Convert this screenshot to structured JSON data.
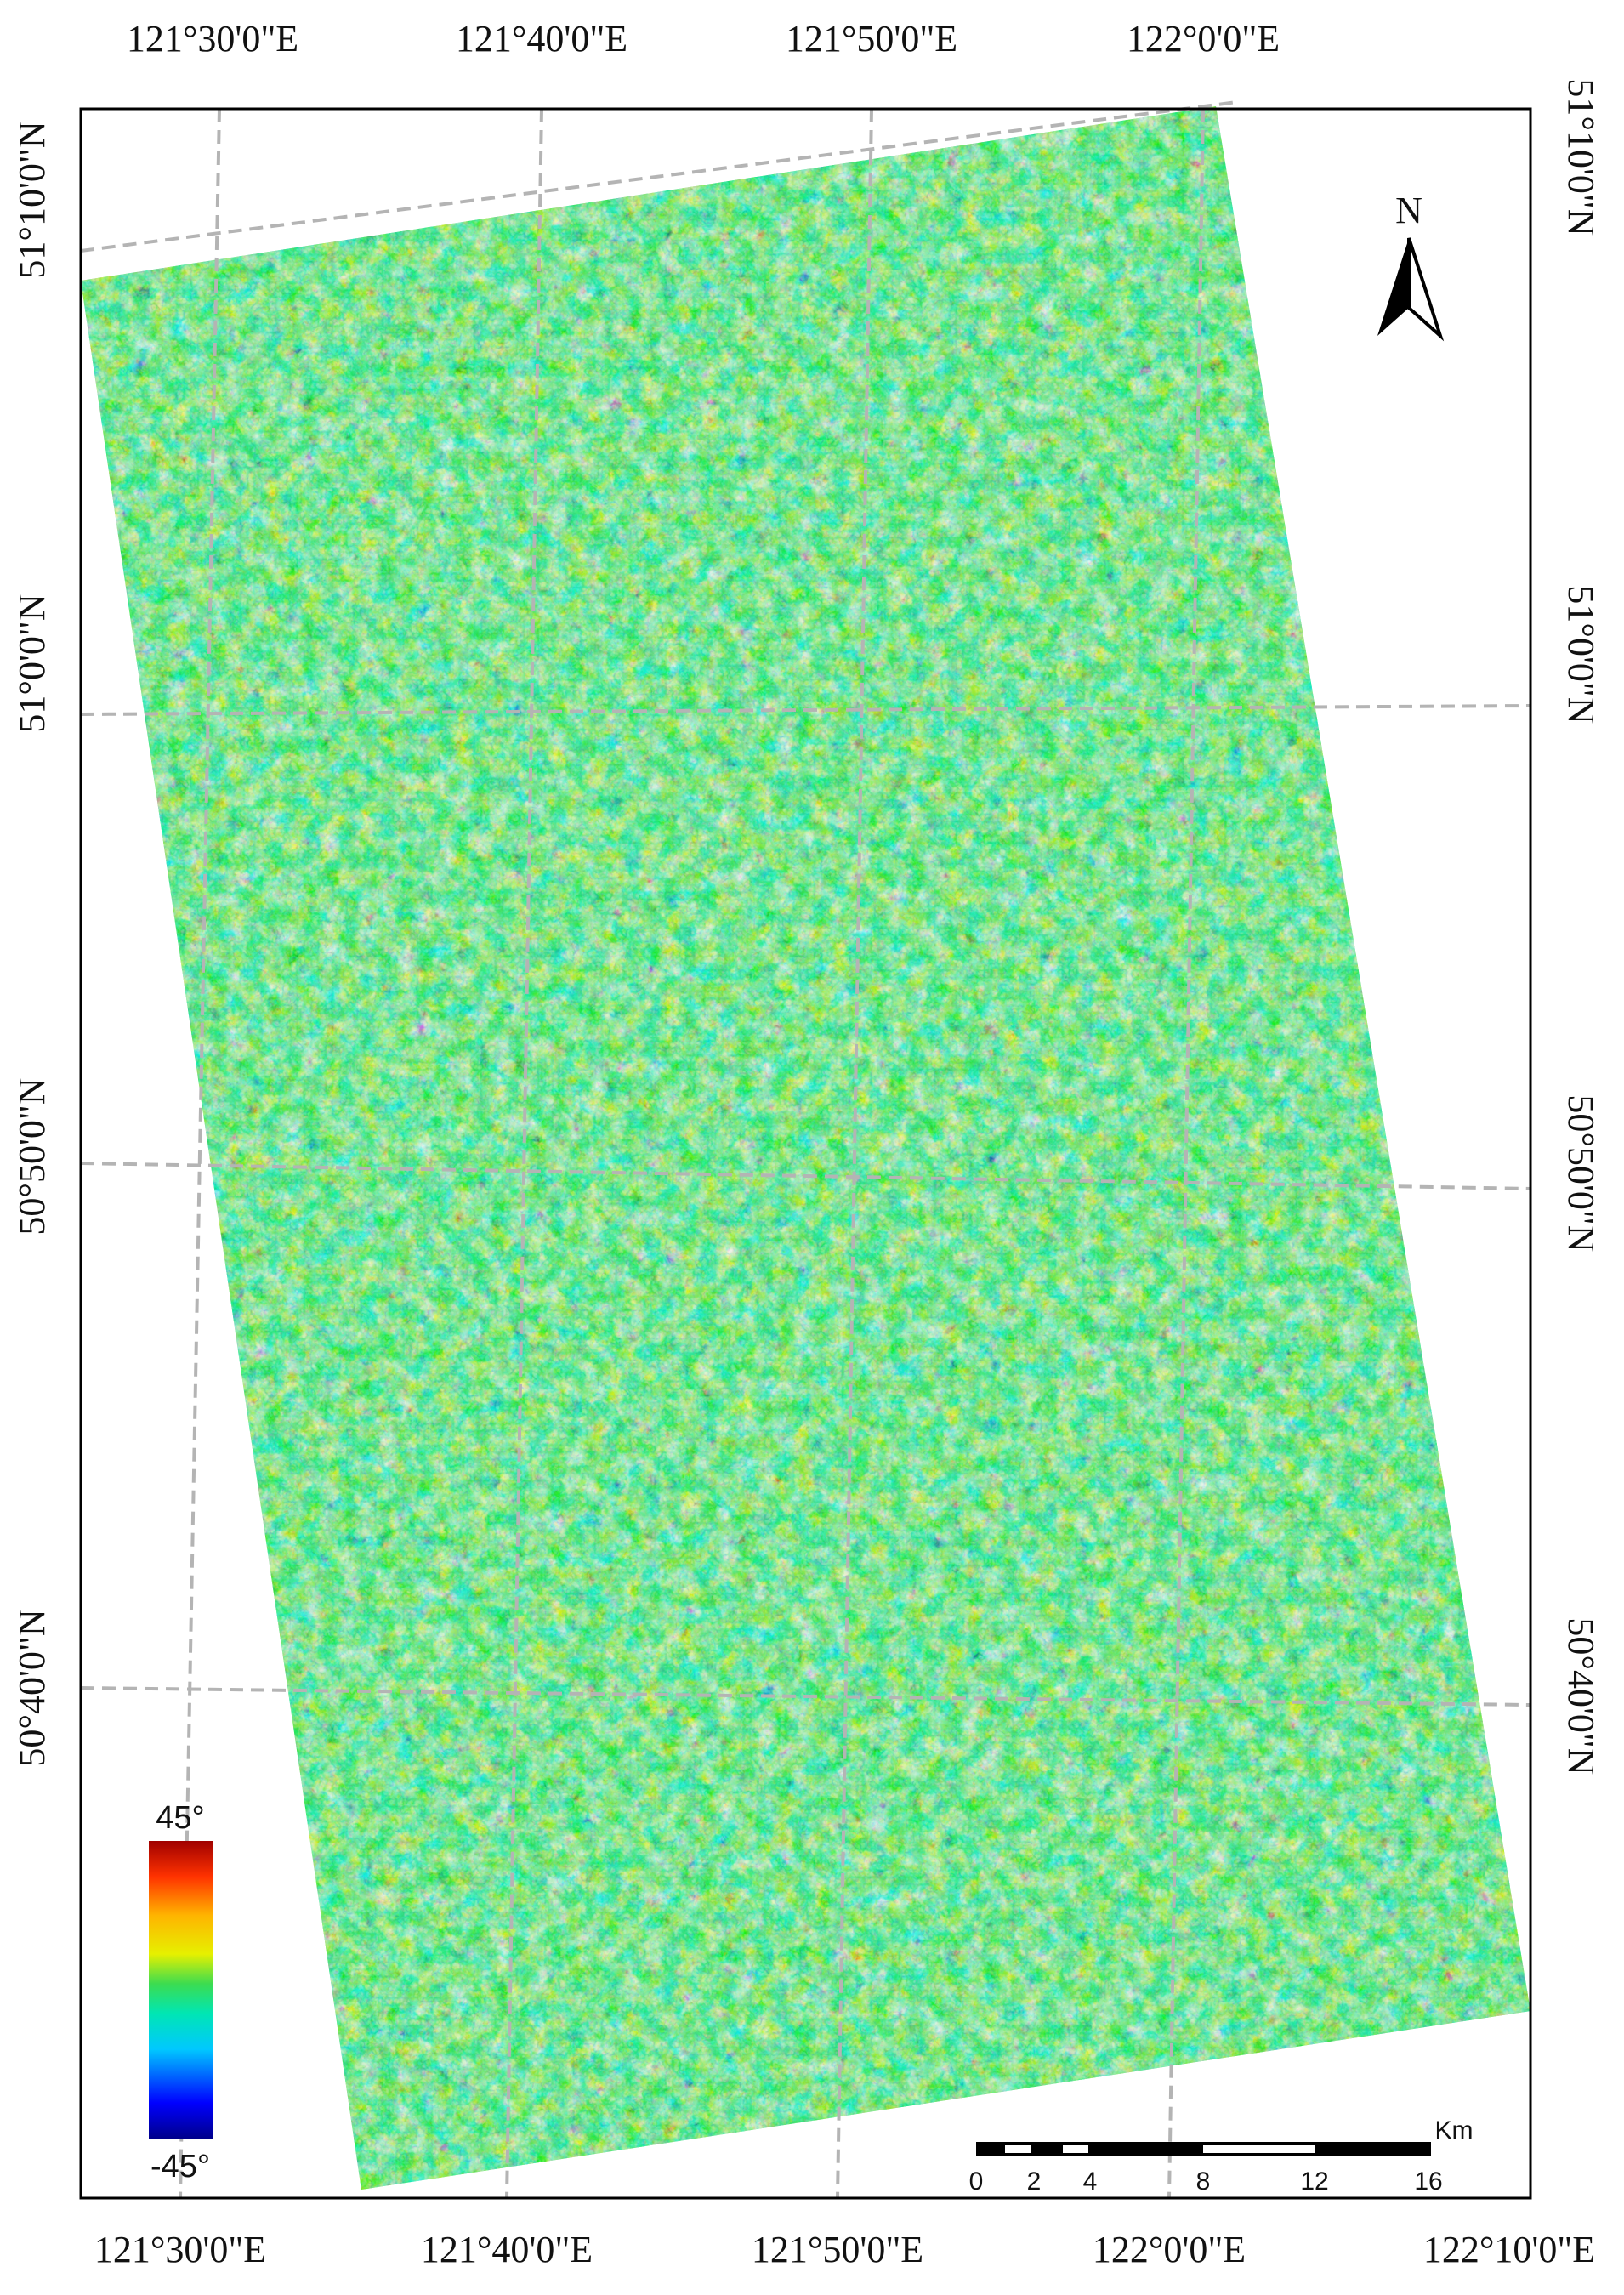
{
  "labels": {
    "top_lon": [
      "121°30'0\"E",
      "121°40'0\"E",
      "121°50'0\"E",
      "122°0'0\"E"
    ],
    "bottom_lon": [
      "121°30'0\"E",
      "121°40'0\"E",
      "121°50'0\"E",
      "122°0'0\"E",
      "122°10'0\"E"
    ],
    "left_lat": [
      "51°10'0\"N",
      "51°0'0\"N",
      "50°50'0\"N",
      "50°40'0\"N"
    ],
    "right_lat": [
      "51°10'0\"N",
      "51°0'0\"N",
      "50°50'0\"N",
      "50°40'0\"N"
    ]
  },
  "north_arrow": {
    "label": "N",
    "icon": "north-arrow-icon"
  },
  "legend": {
    "max_label": "45°",
    "min_label": "-45°",
    "colormap": [
      "#00008b",
      "#0000ff",
      "#00c8ff",
      "#00e6b4",
      "#3cdc50",
      "#e6f000",
      "#ffb400",
      "#ff3200",
      "#a00000"
    ]
  },
  "scale_bar": {
    "unit": "Km",
    "ticks": [
      "0",
      "2",
      "4",
      "8",
      "12",
      "16"
    ]
  },
  "colors": {
    "frame": "#000000",
    "graticule": "#b4b4b4"
  }
}
